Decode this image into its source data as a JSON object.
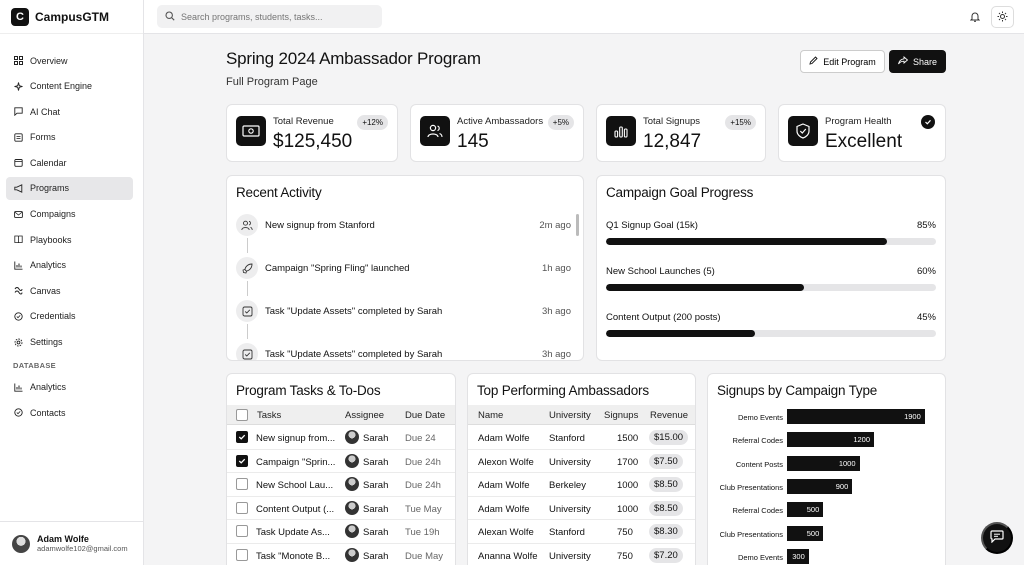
{
  "brand": {
    "logo_letter": "C",
    "name": "CampusGTM"
  },
  "search": {
    "placeholder": "Search programs, students, tasks..."
  },
  "nav": {
    "items": [
      {
        "label": "Overview",
        "icon": "grid-icon"
      },
      {
        "label": "Content Engine",
        "icon": "sparkle-icon"
      },
      {
        "label": "AI Chat",
        "icon": "chat-icon"
      },
      {
        "label": "Forms",
        "icon": "form-icon"
      },
      {
        "label": "Calendar",
        "icon": "calendar-icon"
      },
      {
        "label": "Programs",
        "icon": "megaphone-icon",
        "active": true
      },
      {
        "label": "Compaigns",
        "icon": "mail-icon"
      },
      {
        "label": "Playbooks",
        "icon": "book-icon"
      },
      {
        "label": "Analytics",
        "icon": "chart-icon"
      },
      {
        "label": "Canvas",
        "icon": "canvas-icon"
      },
      {
        "label": "Credentials",
        "icon": "badge-icon"
      },
      {
        "label": "Settings",
        "icon": "gear-icon"
      }
    ],
    "section_label": "DATABASE",
    "db_items": [
      {
        "label": "Analytics",
        "icon": "chart-icon"
      },
      {
        "label": "Contacts",
        "icon": "contacts-icon"
      }
    ]
  },
  "user": {
    "name": "Adam Wolfe",
    "email": "adamwolfe102@gmail.com"
  },
  "header": {
    "title": "Spring 2024 Ambassador Program",
    "subtitle": "Full Program Page",
    "edit_label": "Edit Program",
    "share_label": "Share"
  },
  "stats": [
    {
      "label": "Total Revenue",
      "value": "$125,450",
      "badge": "+12%"
    },
    {
      "label": "Active Ambassadors",
      "value": "145",
      "badge": "+5%"
    },
    {
      "label": "Total Signups",
      "value": "12,847",
      "badge": "+15%"
    },
    {
      "label": "Program Health",
      "value": "Excellent"
    }
  ],
  "activity": {
    "title": "Recent Activity",
    "items": [
      {
        "text": "New signup from Stanford",
        "time": "2m ago",
        "icon": "users-icon"
      },
      {
        "text": "Campaign \"Spring Fling\" launched",
        "time": "1h ago",
        "icon": "rocket-icon"
      },
      {
        "text": "Task \"Update Assets\" completed by Sarah",
        "time": "3h ago",
        "icon": "check-square-icon"
      },
      {
        "text": "Task \"Update Assets\" completed by Sarah",
        "time": "3h ago",
        "icon": "check-square-icon"
      }
    ]
  },
  "goals": {
    "title": "Campaign Goal Progress",
    "items": [
      {
        "label": "Q1 Signup Goal (15k)",
        "pct_label": "85%",
        "progress": 85
      },
      {
        "label": "New School Launches (5)",
        "pct_label": "60%",
        "progress": 60
      },
      {
        "label": "Content Output (200 posts)",
        "pct_label": "45%",
        "progress": 45
      }
    ]
  },
  "tasks": {
    "title": "Program Tasks & To-Dos",
    "headers": [
      "Tasks",
      "Assignee",
      "Due Date"
    ],
    "rows": [
      {
        "task": "New signup from...",
        "assignee": "Sarah",
        "due": "Due 24",
        "checked": true
      },
      {
        "task": "Campaign \"Sprin...",
        "assignee": "Sarah",
        "due": "Due 24h",
        "checked": true
      },
      {
        "task": "New School Lau...",
        "assignee": "Sarah",
        "due": "Due 24h",
        "checked": false
      },
      {
        "task": "Content Output (...",
        "assignee": "Sarah",
        "due": "Tue May",
        "checked": false
      },
      {
        "task": "Task Update As...",
        "assignee": "Sarah",
        "due": "Tue 19h",
        "checked": false
      },
      {
        "task": "Task \"Monote B...",
        "assignee": "Sarah",
        "due": "Due May",
        "checked": false
      }
    ]
  },
  "ambassadors": {
    "title": "Top Performing Ambassadors",
    "headers": [
      "Name",
      "University",
      "Signups",
      "Revenue"
    ],
    "rows": [
      {
        "name": "Adam Wolfe",
        "university": "Stanford",
        "signups": "1500",
        "revenue": "$15.00"
      },
      {
        "name": "Alexon Wolfe",
        "university": "University",
        "signups": "1700",
        "revenue": "$7.50"
      },
      {
        "name": "Adam Wolfe",
        "university": "Berkeley",
        "signups": "1000",
        "revenue": "$8.50"
      },
      {
        "name": "Adam Wolfe",
        "university": "University",
        "signups": "1000",
        "revenue": "$8.50"
      },
      {
        "name": "Alexan Wolfe",
        "university": "Stanford",
        "signups": "750",
        "revenue": "$8.30"
      },
      {
        "name": "Ananna Wolfe",
        "university": "University",
        "signups": "750",
        "revenue": "$7.20"
      }
    ]
  },
  "chart_data": {
    "type": "bar",
    "title": "Signups by Campaign Type",
    "categories": [
      "Demo Events",
      "Referral Codes",
      "Content Posts",
      "Club Presentations",
      "Referral Codes",
      "Club Presentations",
      "Demo Events"
    ],
    "values": [
      1900,
      1200,
      1000,
      900,
      500,
      500,
      300
    ],
    "value_labels": [
      "1900",
      "1200",
      "1000",
      "900",
      "500",
      "500",
      "300"
    ],
    "xlim": [
      0,
      2000
    ],
    "grid": false,
    "legend": "none",
    "bar_color": "#111111"
  },
  "colors": {
    "accent": "#111111",
    "background": "#f4f4f5",
    "card": "#ffffff"
  }
}
